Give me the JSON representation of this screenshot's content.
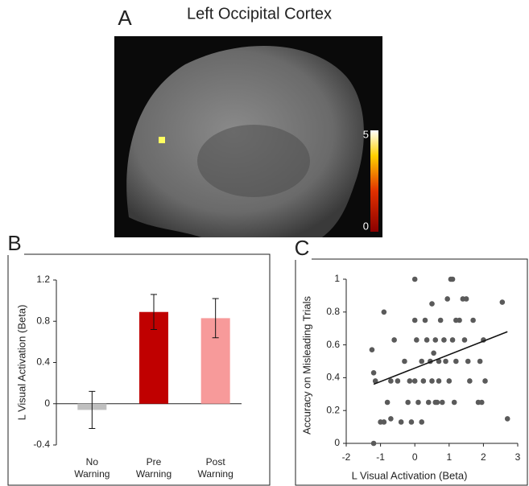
{
  "panel_a": {
    "label": "A",
    "title": "Left Occipital Cortex",
    "colorbar_ticks": [
      0,
      5
    ]
  },
  "chart_data": [
    {
      "type": "bar",
      "panel_label": "B",
      "ylabel": "L Visual Activation (Beta)",
      "categories": [
        "No Warning",
        "Pre Warning",
        "Post Warning"
      ],
      "values": [
        -0.06,
        0.89,
        0.83
      ],
      "errors": [
        0.18,
        0.17,
        0.19
      ],
      "colors": [
        "#c0c0c0",
        "#c00000",
        "#f79a9a"
      ],
      "ylim": [
        -0.4,
        1.2
      ],
      "yticks": [
        -0.4,
        0,
        0.4,
        0.8,
        1.2
      ]
    },
    {
      "type": "scatter",
      "panel_label": "C",
      "xlabel": "L Visual Activation (Beta)",
      "ylabel": "Accuracy on Misleading Trials",
      "color": "#5a5a5a",
      "x": [
        -1.25,
        -1.2,
        -1.15,
        -1.2,
        -1.0,
        -0.9,
        -0.8,
        -0.7,
        -0.6,
        -0.7,
        -0.5,
        -0.4,
        -0.3,
        -0.2,
        -0.15,
        -0.1,
        0,
        0,
        0,
        0.05,
        0.1,
        0.2,
        0.2,
        0.25,
        0.3,
        0.35,
        0.4,
        0.45,
        0.5,
        0.5,
        0.55,
        0.6,
        0.65,
        0.7,
        0.7,
        0.75,
        0.8,
        0.85,
        0.9,
        0.95,
        1.0,
        1.05,
        1.1,
        1.1,
        1.15,
        1.2,
        1.3,
        1.4,
        1.45,
        1.5,
        1.55,
        1.6,
        1.7,
        1.85,
        1.9,
        1.95,
        2.0,
        2.05,
        2.55,
        2.7,
        -0.9,
        0.6,
        1.2
      ],
      "values": [
        0.57,
        0.43,
        0.38,
        0,
        0.13,
        0.8,
        0.25,
        0.38,
        0.63,
        0.15,
        0.38,
        0.13,
        0.5,
        0.25,
        0.38,
        0.13,
        0.38,
        1,
        0.75,
        0.63,
        0.25,
        0.13,
        0.5,
        0.38,
        0.75,
        0.63,
        0.25,
        0.5,
        0.38,
        0.85,
        0.55,
        0.63,
        0.25,
        0.5,
        0.38,
        0.75,
        0.25,
        0.63,
        0.5,
        0.88,
        0.38,
        1,
        1,
        0.63,
        0.25,
        0.5,
        0.75,
        0.88,
        0.63,
        0.88,
        0.5,
        0.38,
        0.75,
        0.25,
        0.5,
        0.25,
        0.63,
        0.38,
        0.86,
        0.15,
        0.13,
        0.25,
        0.75
      ],
      "trendline": {
        "x": [
          -1.2,
          2.7
        ],
        "y": [
          0.36,
          0.68
        ]
      },
      "xlim": [
        -2,
        3
      ],
      "xticks": [
        -2,
        -1,
        0,
        1,
        2,
        3
      ],
      "ylim": [
        0,
        1
      ],
      "yticks": [
        0,
        0.2,
        0.4,
        0.6,
        0.8,
        1
      ]
    }
  ]
}
